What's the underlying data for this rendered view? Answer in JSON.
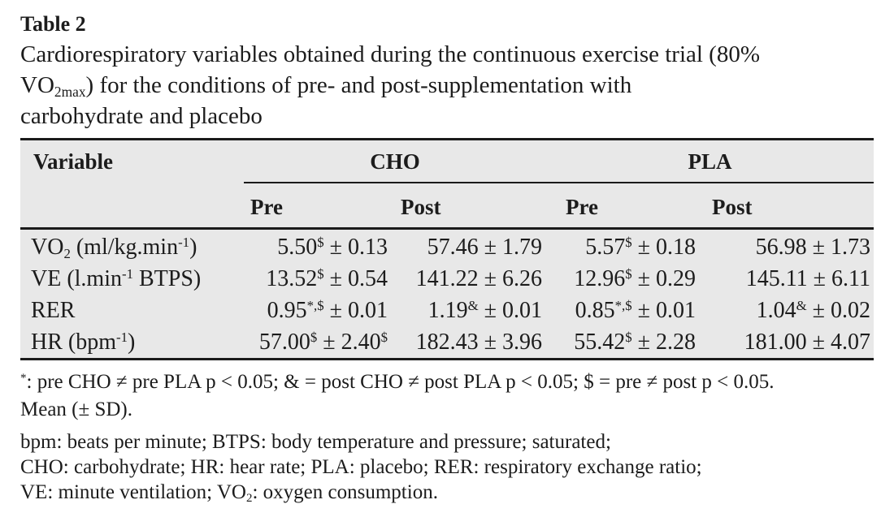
{
  "colors": {
    "table_background": "#e8e8e8",
    "rule": "#1a1a1a",
    "text": "#1c1c1c",
    "page_background": "#ffffff"
  },
  "heading": {
    "label": "Table 2"
  },
  "caption": {
    "lines": [
      [
        [
          "",
          "Cardiorespiratory variables obtained during the continuous exercise trial (80%"
        ]
      ],
      [
        [
          "",
          "VO"
        ],
        [
          "sub",
          "2max"
        ],
        [
          "",
          ") for the conditions of pre- and post-supplementation with"
        ]
      ],
      [
        [
          "",
          "carbohydrate and placebo"
        ]
      ]
    ]
  },
  "table": {
    "header": {
      "variable": "Variable",
      "group1": "CHO",
      "group2": "PLA",
      "sub": [
        "Pre",
        "Post",
        "Pre",
        "Post"
      ]
    },
    "rows": [
      {
        "label": [
          [
            "",
            "VO"
          ],
          [
            "sub",
            "2"
          ],
          [
            "",
            " (ml/kg.min"
          ],
          [
            "sup",
            "-1"
          ],
          [
            "",
            ")"
          ]
        ],
        "cells": [
          [
            [
              "",
              "5.50"
            ],
            [
              "sup",
              "$"
            ],
            [
              "",
              " ± 0.13"
            ]
          ],
          [
            [
              "",
              "57.46 ± 1.79"
            ]
          ],
          [
            [
              "",
              "5.57"
            ],
            [
              "sup",
              "$"
            ],
            [
              "",
              " ± 0.18"
            ]
          ],
          [
            [
              "",
              "56.98 ± 1.73"
            ]
          ]
        ]
      },
      {
        "label": [
          [
            "",
            "VE (l.min"
          ],
          [
            "sup",
            "-1"
          ],
          [
            "",
            " BTPS)"
          ]
        ],
        "cells": [
          [
            [
              "",
              "13.52"
            ],
            [
              "sup",
              "$"
            ],
            [
              "",
              " ± 0.54"
            ]
          ],
          [
            [
              "",
              "141.22 ± 6.26"
            ]
          ],
          [
            [
              "",
              "12.96"
            ],
            [
              "sup",
              "$"
            ],
            [
              "",
              " ± 0.29"
            ]
          ],
          [
            [
              "",
              "145.11 ± 6.11"
            ]
          ]
        ]
      },
      {
        "label": [
          [
            "",
            "RER"
          ]
        ],
        "cells": [
          [
            [
              "",
              "0.95"
            ],
            [
              "sup",
              "*,$"
            ],
            [
              "",
              " ± 0.01"
            ]
          ],
          [
            [
              "",
              "1.19"
            ],
            [
              "sup",
              "&"
            ],
            [
              "",
              " ± 0.01"
            ]
          ],
          [
            [
              "",
              "0.85"
            ],
            [
              "sup",
              "*,$"
            ],
            [
              "",
              " ± 0.01"
            ]
          ],
          [
            [
              "",
              "1.04"
            ],
            [
              "sup",
              "&"
            ],
            [
              "",
              " ± 0.02"
            ]
          ]
        ]
      },
      {
        "label": [
          [
            "",
            "HR (bpm"
          ],
          [
            "sup",
            "-1"
          ],
          [
            "",
            ")"
          ]
        ],
        "cells": [
          [
            [
              "",
              "57.00"
            ],
            [
              "sup",
              "$"
            ],
            [
              "",
              " ± 2.40"
            ],
            [
              "sup",
              "$"
            ]
          ],
          [
            [
              "",
              "182.43 ± 3.96"
            ]
          ],
          [
            [
              "",
              "55.42"
            ],
            [
              "sup",
              "$"
            ],
            [
              "",
              " ± 2.28"
            ]
          ],
          [
            [
              "",
              "181.00 ± 4.07"
            ]
          ]
        ]
      }
    ]
  },
  "footnotes": {
    "stats": [
      [
        [
          "sup",
          "*"
        ],
        [
          "",
          ": pre CHO ≠ pre PLA p < 0.05; & = post CHO ≠ post PLA p < 0.05; $ = pre ≠ post p < 0.05."
        ]
      ],
      [
        [
          "",
          "Mean (± SD)."
        ]
      ]
    ],
    "abbrev": [
      [
        [
          "",
          "bpm: beats per minute; BTPS: body temperature and pressure; saturated;"
        ]
      ],
      [
        [
          "",
          "CHO: carbohydrate; HR: hear rate; PLA: placebo; RER: respiratory exchange ratio;"
        ]
      ],
      [
        [
          "",
          "VE: minute ventilation; VO"
        ],
        [
          "sub",
          "2"
        ],
        [
          "",
          ": oxygen consumption."
        ]
      ]
    ]
  }
}
